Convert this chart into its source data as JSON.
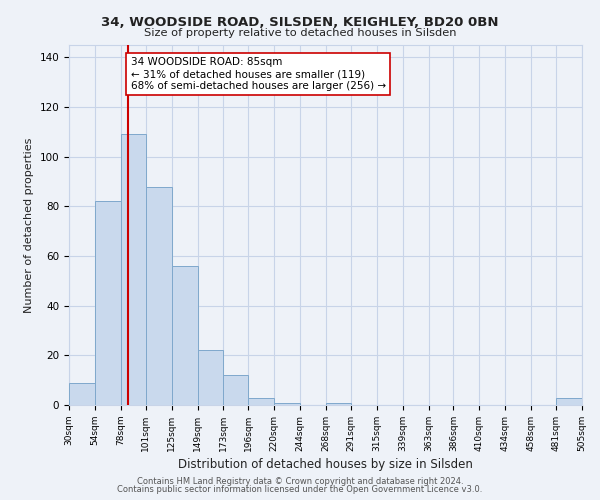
{
  "title1": "34, WOODSIDE ROAD, SILSDEN, KEIGHLEY, BD20 0BN",
  "title2": "Size of property relative to detached houses in Silsden",
  "xlabel": "Distribution of detached houses by size in Silsden",
  "ylabel": "Number of detached properties",
  "bin_edges": [
    30,
    54,
    78,
    101,
    125,
    149,
    173,
    196,
    220,
    244,
    268,
    291,
    315,
    339,
    363,
    386,
    410,
    434,
    458,
    481,
    505
  ],
  "bar_heights": [
    9,
    82,
    109,
    88,
    56,
    22,
    12,
    3,
    1,
    0,
    1,
    0,
    0,
    0,
    0,
    0,
    0,
    0,
    0,
    3
  ],
  "bar_color": "#c9d9ed",
  "bar_edge_color": "#7fa8cc",
  "property_size": 85,
  "red_line_color": "#cc0000",
  "annotation_text": "34 WOODSIDE ROAD: 85sqm\n← 31% of detached houses are smaller (119)\n68% of semi-detached houses are larger (256) →",
  "annotation_box_edge": "#cc0000",
  "ylim": [
    0,
    145
  ],
  "yticks": [
    0,
    20,
    40,
    60,
    80,
    100,
    120,
    140
  ],
  "tick_labels": [
    "30sqm",
    "54sqm",
    "78sqm",
    "101sqm",
    "125sqm",
    "149sqm",
    "173sqm",
    "196sqm",
    "220sqm",
    "244sqm",
    "268sqm",
    "291sqm",
    "315sqm",
    "339sqm",
    "363sqm",
    "386sqm",
    "410sqm",
    "434sqm",
    "458sqm",
    "481sqm",
    "505sqm"
  ],
  "footnote1": "Contains HM Land Registry data © Crown copyright and database right 2024.",
  "footnote2": "Contains public sector information licensed under the Open Government Licence v3.0.",
  "background_color": "#eef2f8",
  "grid_color": "#c8d4e8"
}
